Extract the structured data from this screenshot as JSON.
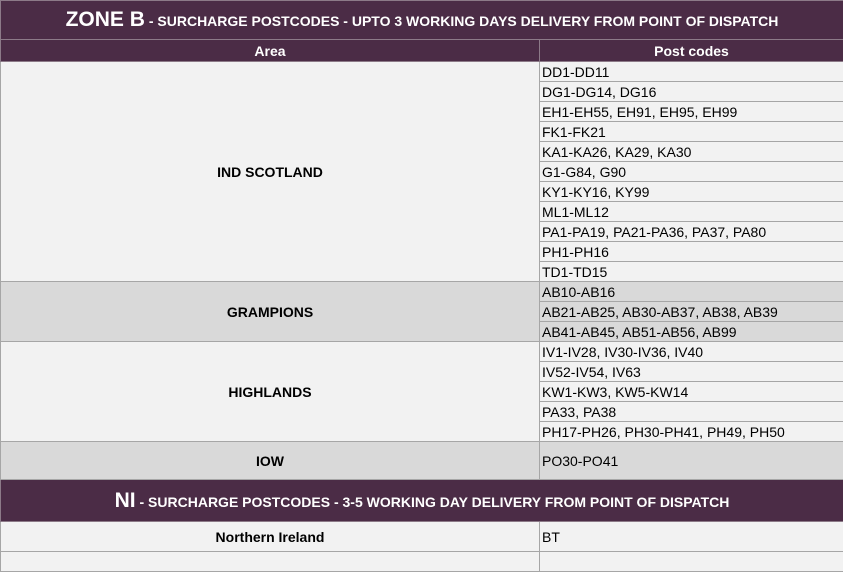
{
  "zone_b": {
    "title_big": "ZONE B",
    "title_rest": " - SURCHARGE POSTCODES - UPTO 3 WORKING DAYS DELIVERY FROM POINT OF DISPATCH"
  },
  "columns": {
    "area": "Area",
    "postcodes": "Post codes"
  },
  "groups": [
    {
      "area": "IND SCOTLAND",
      "shade": "light",
      "codes": [
        "DD1-DD11",
        "DG1-DG14, DG16",
        "EH1-EH55, EH91, EH95, EH99",
        "FK1-FK21",
        "KA1-KA26, KA29, KA30",
        "G1-G84, G90",
        "KY1-KY16, KY99",
        "ML1-ML12",
        "PA1-PA19, PA21-PA36, PA37, PA80",
        "PH1-PH16",
        "TD1-TD15"
      ]
    },
    {
      "area": "GRAMPIONS",
      "shade": "dark",
      "codes": [
        "AB10-AB16",
        "AB21-AB25, AB30-AB37, AB38, AB39",
        "AB41-AB45, AB51-AB56, AB99"
      ]
    },
    {
      "area": "HIGHLANDS",
      "shade": "light",
      "codes": [
        "IV1-IV28, IV30-IV36, IV40",
        "IV52-IV54, IV63",
        "KW1-KW3, KW5-KW14",
        "PA33, PA38",
        "PH17-PH26, PH30-PH41, PH49, PH50"
      ]
    },
    {
      "area": "IOW",
      "shade": "dark",
      "tall": true,
      "codes": [
        "PO30-PO41"
      ]
    }
  ],
  "ni": {
    "title_big": "NI",
    "title_rest": " -  SURCHARGE POSTCODES - 3-5 WORKING DAY DELIVERY FROM POINT OF DISPATCH",
    "area": "Northern Ireland",
    "code": "BT"
  },
  "colors": {
    "header_bg": "#4b2c46",
    "row_light": "#f2f2f2",
    "row_dark": "#d9d9d9"
  }
}
